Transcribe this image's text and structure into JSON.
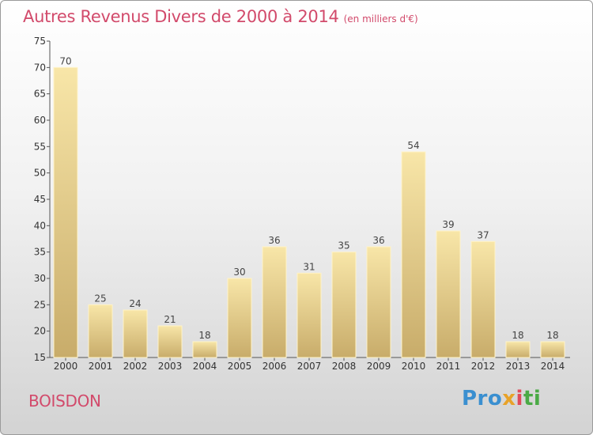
{
  "chart_data": {
    "type": "bar",
    "title": "Autres Revenus Divers de 2000 à 2014",
    "subtitle": "(en milliers d'€)",
    "categories": [
      "2000",
      "2001",
      "2002",
      "2003",
      "2004",
      "2005",
      "2006",
      "2007",
      "2008",
      "2009",
      "2010",
      "2011",
      "2012",
      "2013",
      "2014"
    ],
    "values": [
      70,
      25,
      24,
      21,
      18,
      30,
      36,
      31,
      35,
      36,
      54,
      39,
      37,
      18,
      18
    ],
    "ylim": [
      15,
      75
    ],
    "yticks": [
      15,
      20,
      25,
      30,
      35,
      40,
      45,
      50,
      55,
      60,
      65,
      70,
      75
    ],
    "grid": false,
    "bar_color_light": "#f6e2a2",
    "bar_color_dark": "#c9ad6b"
  },
  "commune": "BOISDON",
  "logo": {
    "p1": "Pro",
    "p2": "x",
    "p3": "i",
    "p4": "ti"
  },
  "colors": {
    "accent": "#d24a6b"
  }
}
